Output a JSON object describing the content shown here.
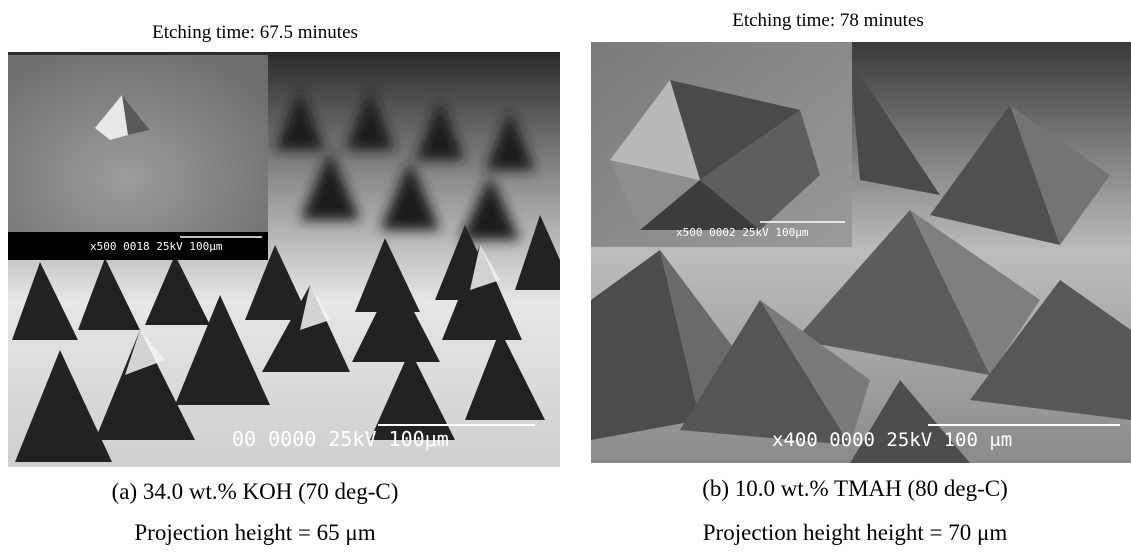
{
  "panels": [
    {
      "etching_time": "Etching time:  67.5 minutes",
      "inset_label": "x500  0018  25kV 100μm",
      "image_label": "00  0000  25kV 100μm",
      "caption": "(a) 34.0 wt.% KOH (70 deg-C)",
      "height": "Projection height = 65 μm"
    },
    {
      "etching_time": "Etching time:  78 minutes",
      "inset_label": "x500  0002  25kV 100μm",
      "image_label": "x400  0000  25kV 100 μm",
      "caption": "(b) 10.0 wt.% TMAH (80 deg-C)",
      "height": "Projection height height = 70 μm"
    }
  ]
}
